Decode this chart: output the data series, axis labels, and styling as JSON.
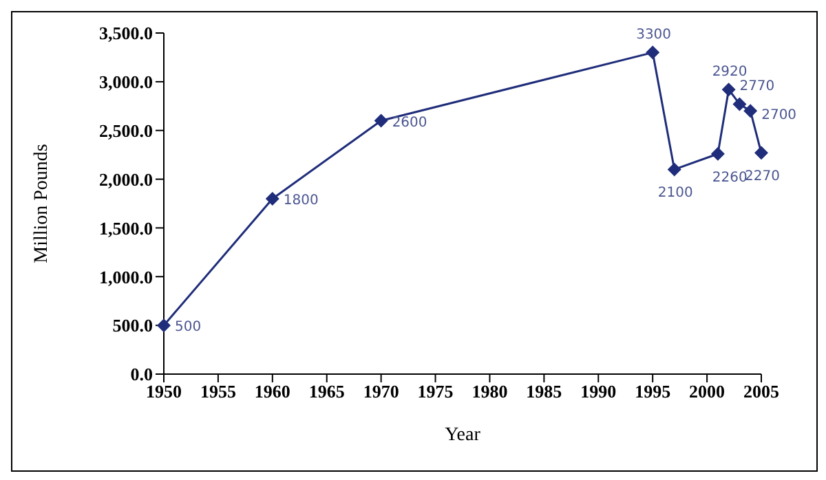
{
  "chart_data": {
    "type": "line",
    "xlabel": "Year",
    "ylabel": "Million Pounds",
    "x": [
      1950,
      1960,
      1970,
      1995,
      1997,
      2001,
      2002,
      2003,
      2004,
      2005
    ],
    "series": [
      {
        "color": "#1f2d7a",
        "values": [
          500,
          1800,
          2600,
          3300,
          2100,
          2260,
          2920,
          2770,
          2700,
          2270
        ]
      }
    ],
    "xlim": [
      1950,
      2005
    ],
    "xticks": [
      1950,
      1955,
      1960,
      1965,
      1970,
      1975,
      1980,
      1985,
      1990,
      1995,
      2000,
      2005
    ],
    "ylim": [
      0,
      3500
    ],
    "yticks": [
      {
        "value": 0,
        "label": "0.0"
      },
      {
        "value": 500,
        "label": "500.0"
      },
      {
        "value": 1000,
        "label": "1,000.0"
      },
      {
        "value": 1500,
        "label": "1,500.0"
      },
      {
        "value": 2000,
        "label": "2,000.0"
      },
      {
        "value": 2500,
        "label": "2,500.0"
      },
      {
        "value": 3000,
        "label": "3,000.0"
      },
      {
        "value": 3500,
        "label": "3,500.0"
      }
    ],
    "marker": "diamond",
    "line_style": "solid",
    "data_labels": true,
    "grid": false,
    "legend": false
  }
}
